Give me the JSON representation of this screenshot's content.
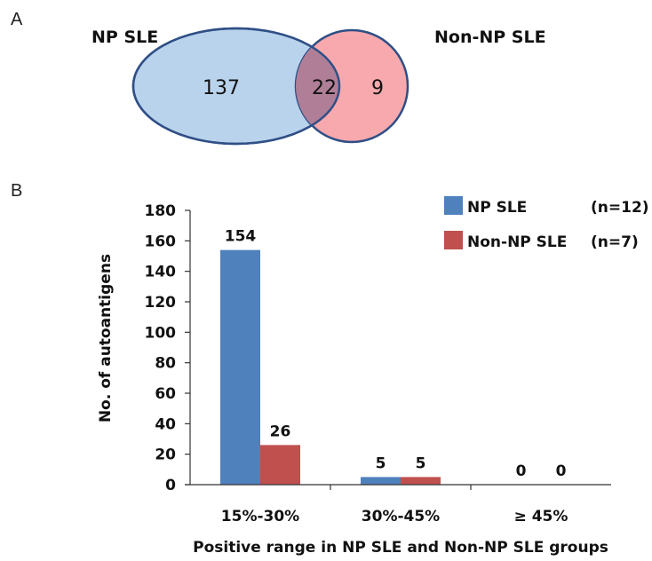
{
  "panels": {
    "a": "A",
    "b": "B"
  },
  "venn": {
    "left_label": "NP SLE",
    "right_label": "Non-NP SLE",
    "left_only": "137",
    "overlap": "22",
    "right_only": "9",
    "left_color": "#b9d3ec",
    "right_color": "#f7a9ad",
    "overlap_color": "#b07f97",
    "edge_color": "#2f4f86"
  },
  "chart_data": {
    "type": "bar",
    "categories": [
      "15%-30%",
      "30%-45%",
      "≥ 45%"
    ],
    "series": [
      {
        "name": "NP SLE",
        "values": [
          154,
          5,
          0
        ],
        "color": "#4f81bd",
        "n_label": "(n=12)"
      },
      {
        "name": "Non-NP SLE",
        "values": [
          26,
          5,
          0
        ],
        "color": "#c0504d",
        "n_label": "(n=7)"
      }
    ],
    "xlabel": "Positive range in NP SLE and Non-NP SLE groups",
    "ylabel": "No. of autoantigens",
    "ylim": [
      0,
      180
    ],
    "yticks": [
      0,
      20,
      40,
      60,
      80,
      100,
      120,
      140,
      160,
      180
    ],
    "grid": false,
    "legend": "top-right"
  }
}
